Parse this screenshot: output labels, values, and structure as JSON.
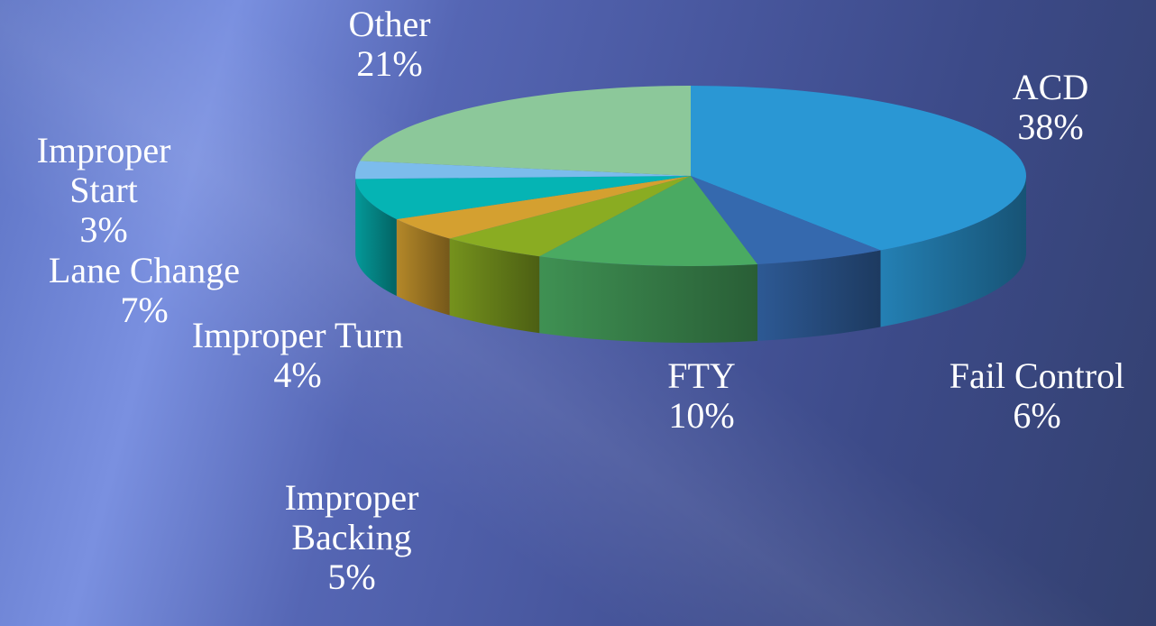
{
  "chart_data": {
    "type": "pie",
    "categories": [
      "ACD",
      "Fail Control",
      "FTY",
      "Improper Backing",
      "Improper Turn",
      "Lane Change",
      "Improper Start",
      "Other"
    ],
    "values": [
      38,
      6,
      10,
      5,
      4,
      7,
      3,
      21
    ],
    "value_labels": [
      "38%",
      "6%",
      "10%",
      "5%",
      "4%",
      "7%",
      "3%",
      "21%"
    ],
    "colors": [
      "#2a97d4",
      "#3569ae",
      "#4aaa62",
      "#8aac22",
      "#d4a030",
      "#05b4b4",
      "#7cbcec",
      "#8cc89a"
    ]
  }
}
